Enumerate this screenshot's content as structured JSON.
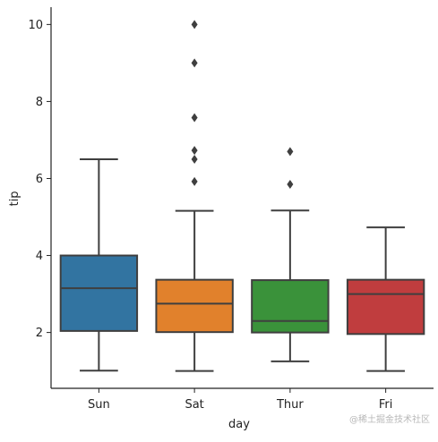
{
  "chart_data": {
    "type": "box",
    "xlabel": "day",
    "ylabel": "tip",
    "categories": [
      "Sun",
      "Sat",
      "Thur",
      "Fri"
    ],
    "colors": [
      "#3274a1",
      "#e1812c",
      "#3a923a",
      "#c03d3e"
    ],
    "ylim": [
      0.55,
      10.45
    ],
    "yticks": [
      2,
      4,
      6,
      8,
      10
    ],
    "boxes": [
      {
        "category": "Sun",
        "whisker_low": 1.01,
        "q1": 2.04,
        "median": 3.15,
        "q3": 4.0,
        "whisker_high": 6.5,
        "outliers": []
      },
      {
        "category": "Sat",
        "whisker_low": 1.0,
        "q1": 2.01,
        "median": 2.75,
        "q3": 3.37,
        "whisker_high": 5.16,
        "outliers": [
          5.92,
          6.5,
          6.73,
          7.58,
          9.0,
          10.0
        ]
      },
      {
        "category": "Thur",
        "whisker_low": 1.25,
        "q1": 2.0,
        "median": 2.3,
        "q3": 3.36,
        "whisker_high": 5.17,
        "outliers": [
          5.85,
          6.7
        ]
      },
      {
        "category": "Fri",
        "whisker_low": 1.0,
        "q1": 1.96,
        "median": 3.0,
        "q3": 3.37,
        "whisker_high": 4.73,
        "outliers": []
      }
    ],
    "grid": false,
    "legend": "none"
  },
  "watermark": "@稀土掘金技术社区"
}
